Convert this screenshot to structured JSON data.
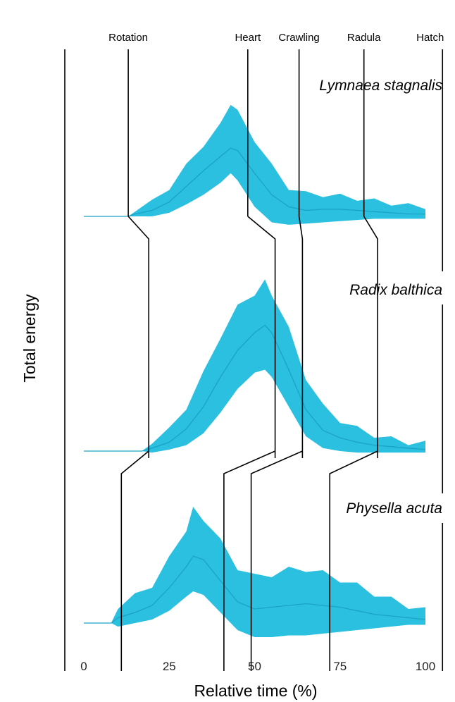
{
  "chart_data": {
    "type": "area",
    "xlabel": "Relative time (%)",
    "ylabel": "Total energy",
    "xlim": [
      0,
      100
    ],
    "xticks": [
      0,
      25,
      50,
      75,
      100
    ],
    "colors": {
      "band": "#2bbfe0",
      "mean": "#1aa3c7",
      "milestone": "#000000"
    },
    "milestones": [
      "Rotation",
      "Heart",
      "Crawling",
      "Radula",
      "Hatch"
    ],
    "series": [
      {
        "name": "Lymnaea stagnalis",
        "x": [
          0,
          13,
          15,
          20,
          25,
          30,
          35,
          40,
          43,
          45,
          50,
          55,
          60,
          65,
          70,
          75,
          80,
          85,
          90,
          95,
          100
        ],
        "mean": [
          0,
          0,
          0.02,
          0.05,
          0.12,
          0.25,
          0.38,
          0.5,
          0.57,
          0.55,
          0.36,
          0.18,
          0.08,
          0.05,
          0.06,
          0.06,
          0.05,
          0.04,
          0.03,
          0.02,
          0.02
        ],
        "lower": [
          0,
          0,
          0.0,
          0.0,
          0.03,
          0.1,
          0.18,
          0.28,
          0.36,
          0.3,
          0.08,
          -0.05,
          -0.07,
          -0.06,
          -0.05,
          -0.04,
          -0.03,
          -0.02,
          -0.02,
          -0.02,
          -0.02
        ],
        "upper": [
          0,
          0,
          0.04,
          0.1,
          0.22,
          0.4,
          0.58,
          0.74,
          0.93,
          0.85,
          0.62,
          0.4,
          0.22,
          0.17,
          0.16,
          0.15,
          0.13,
          0.11,
          0.09,
          0.07,
          0.06
        ],
        "milestones_x": {
          "Rotation": 13,
          "Heart": 48,
          "Crawling": 63,
          "Radula": 82,
          "Hatch": 105
        }
      },
      {
        "name": "Radix balthica",
        "x": [
          0,
          17,
          20,
          25,
          30,
          35,
          40,
          45,
          50,
          53,
          55,
          60,
          65,
          70,
          75,
          80,
          85,
          90,
          95,
          100
        ],
        "mean": [
          0,
          0,
          0.02,
          0.06,
          0.15,
          0.3,
          0.5,
          0.68,
          0.8,
          0.85,
          0.8,
          0.55,
          0.28,
          0.14,
          0.09,
          0.06,
          0.04,
          0.03,
          0.02,
          0.01
        ],
        "lower": [
          0,
          0,
          -0.01,
          0.01,
          0.04,
          0.12,
          0.26,
          0.42,
          0.53,
          0.55,
          0.5,
          0.3,
          0.1,
          0.02,
          0.0,
          -0.01,
          -0.01,
          -0.01,
          -0.01,
          -0.01
        ],
        "upper": [
          0,
          0,
          0.05,
          0.12,
          0.28,
          0.5,
          0.76,
          0.95,
          1.05,
          1.12,
          1.05,
          0.8,
          0.48,
          0.28,
          0.19,
          0.13,
          0.09,
          0.06,
          0.04,
          0.03
        ],
        "milestones_x": {
          "Rotation": 19,
          "Heart": 56,
          "Crawling": 64,
          "Radula": 86,
          "Hatch": 105
        }
      },
      {
        "name": "Physella acuta",
        "x": [
          0,
          8,
          10,
          15,
          20,
          25,
          30,
          32,
          35,
          40,
          45,
          50,
          55,
          60,
          65,
          70,
          75,
          80,
          85,
          90,
          95,
          100
        ],
        "mean": [
          0,
          0,
          0.03,
          0.06,
          0.1,
          0.2,
          0.32,
          0.38,
          0.36,
          0.24,
          0.12,
          0.08,
          0.09,
          0.1,
          0.11,
          0.1,
          0.09,
          0.07,
          0.05,
          0.04,
          0.03,
          0.02
        ],
        "lower": [
          0,
          0,
          -0.02,
          0.0,
          0.02,
          0.07,
          0.15,
          0.18,
          0.16,
          0.06,
          -0.04,
          -0.08,
          -0.08,
          -0.07,
          -0.07,
          -0.06,
          -0.05,
          -0.04,
          -0.03,
          -0.02,
          -0.01,
          -0.01
        ],
        "upper": [
          0,
          0,
          0.08,
          0.13,
          0.2,
          0.34,
          0.52,
          0.62,
          0.58,
          0.44,
          0.3,
          0.24,
          0.26,
          0.28,
          0.29,
          0.26,
          0.23,
          0.19,
          0.15,
          0.11,
          0.08,
          0.05
        ],
        "milestones_x": {
          "Rotation": 11,
          "Heart": 41,
          "Crawling": 49,
          "Radula": 72,
          "Hatch": 105
        }
      }
    ]
  }
}
